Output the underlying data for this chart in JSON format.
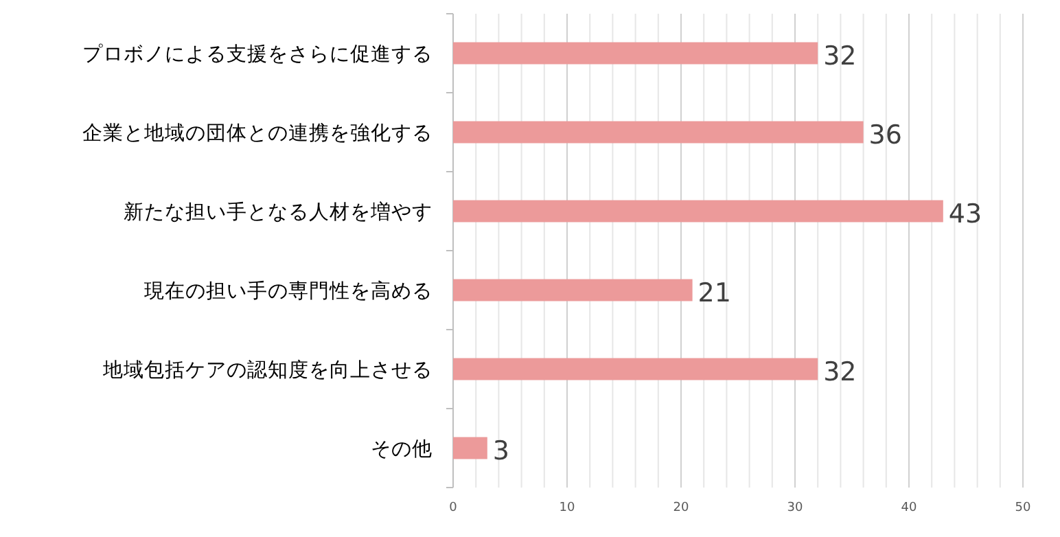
{
  "chart_data": {
    "type": "bar",
    "orientation": "horizontal",
    "categories": [
      "プロボノによる支援をさらに促進する",
      "企業と地域の団体との連携を強化する",
      "新たな担い手となる人材を増やす",
      "現在の担い手の専門性を高める",
      "地域包括ケアの認知度を向上させる",
      "その他"
    ],
    "values": [
      32,
      36,
      43,
      21,
      32,
      3
    ],
    "color": "#ec9a9a",
    "data_labels": true,
    "grid": "x",
    "xlim": [
      0,
      50
    ],
    "xticks": [
      0,
      {
        "value": 2,
        "label": null
      },
      {
        "value": 4,
        "label": null
      },
      {
        "value": 6,
        "label": null
      },
      {
        "value": 8,
        "label": null
      },
      10,
      {
        "value": 12,
        "label": null
      },
      {
        "value": 14,
        "label": null
      },
      {
        "value": 16,
        "label": null
      },
      {
        "value": 18,
        "label": null
      },
      20,
      {
        "value": 22,
        "label": null
      },
      {
        "value": 24,
        "label": null
      },
      {
        "value": 26,
        "label": null
      },
      {
        "value": 28,
        "label": null
      },
      30,
      {
        "value": 32,
        "label": null
      },
      {
        "value": 34,
        "label": null
      },
      {
        "value": 36,
        "label": null
      },
      {
        "value": 38,
        "label": null
      },
      40,
      {
        "value": 42,
        "label": null
      },
      {
        "value": 44,
        "label": null
      },
      {
        "value": 46,
        "label": null
      },
      {
        "value": 48,
        "label": null
      },
      50
    ]
  }
}
